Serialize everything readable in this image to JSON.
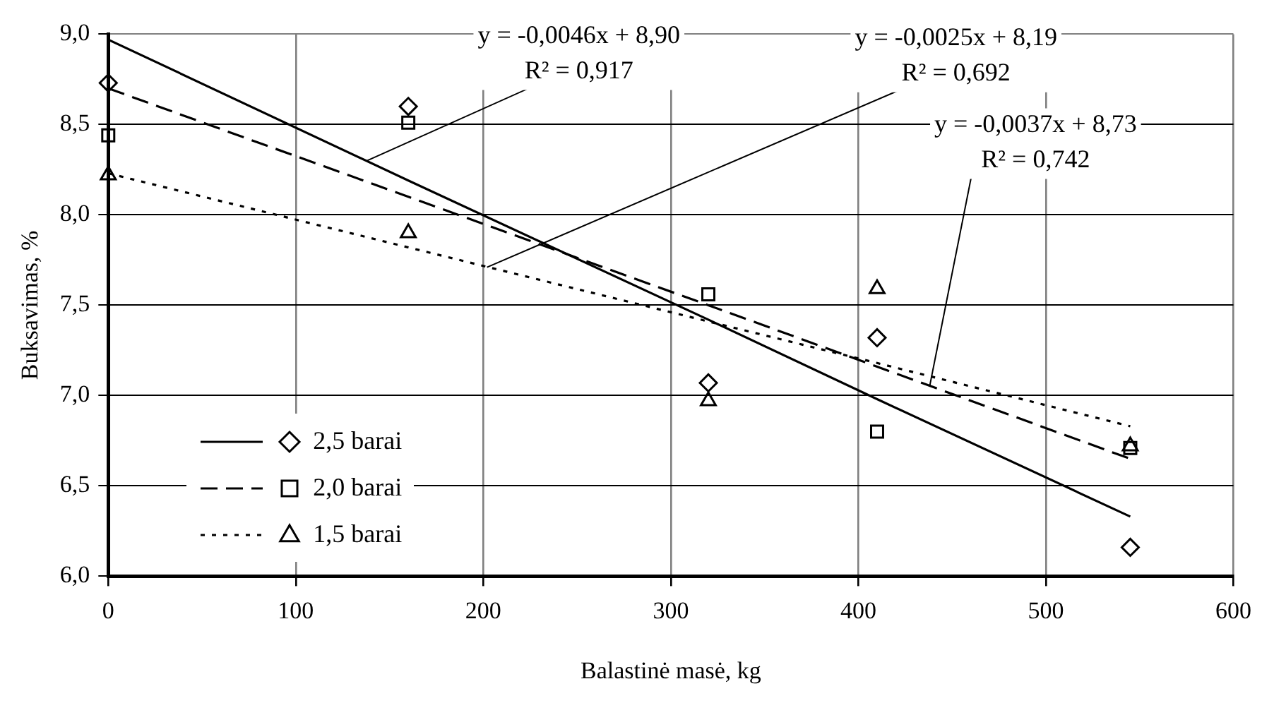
{
  "chart_data": {
    "type": "scatter",
    "xlabel": "Balastinė masė, kg",
    "ylabel": "Buksavimas, %",
    "x": [
      0,
      160,
      320,
      410,
      545
    ],
    "series": [
      {
        "name": "2,5 barai",
        "marker": "diamond",
        "color": "#000000",
        "values": [
          8.73,
          8.6,
          7.07,
          7.32,
          6.16
        ]
      },
      {
        "name": "2,0 barai",
        "marker": "square",
        "color": "#000000",
        "values": [
          8.44,
          8.51,
          7.56,
          6.8,
          6.71
        ]
      },
      {
        "name": "1,5 barai",
        "marker": "triangle",
        "color": "#000000",
        "values": [
          8.22,
          7.9,
          6.97,
          7.59,
          6.72
        ]
      },
      {
        "type": "line",
        "line_style": "solid",
        "marker": "none",
        "color": "#000000",
        "values": [
          8.97,
          8.19,
          7.42,
          6.98,
          6.33
        ]
      },
      {
        "type": "line",
        "line_style": "dashed",
        "marker": "none",
        "color": "#000000",
        "values": [
          8.7,
          8.1,
          7.5,
          7.16,
          6.65
        ]
      },
      {
        "type": "line",
        "line_style": "dotted",
        "marker": "none",
        "color": "#000000",
        "values": [
          8.23,
          7.82,
          7.41,
          7.18,
          6.83
        ]
      }
    ],
    "xlim": [
      0,
      600
    ],
    "xticks": [
      0,
      100,
      200,
      300,
      400,
      500,
      600
    ],
    "ylim": [
      6,
      9
    ],
    "yticks": [
      {
        "value": 6,
        "label": "6,0"
      },
      {
        "value": 6.5,
        "label": "6,5"
      },
      {
        "value": 7,
        "label": "7,0"
      },
      {
        "value": 7.5,
        "label": "7,5"
      },
      {
        "value": 8,
        "label": "8,0"
      },
      {
        "value": 8.5,
        "label": "8,5"
      },
      {
        "value": 9,
        "label": "9,0"
      }
    ],
    "grid": true,
    "legend": "bottom left",
    "annotations": [
      {
        "text": "y = -0,0046x + 8,90\nR² = 0,917",
        "x": 138,
        "y": 8.3
      },
      {
        "text": "y = -0,0025x + 8,19\nR² = 0,692",
        "x": 202,
        "y": 7.71
      },
      {
        "text": "y = -0,0037x + 8,73\nR² = 0,742",
        "x": 438,
        "y": 7.05
      }
    ]
  }
}
